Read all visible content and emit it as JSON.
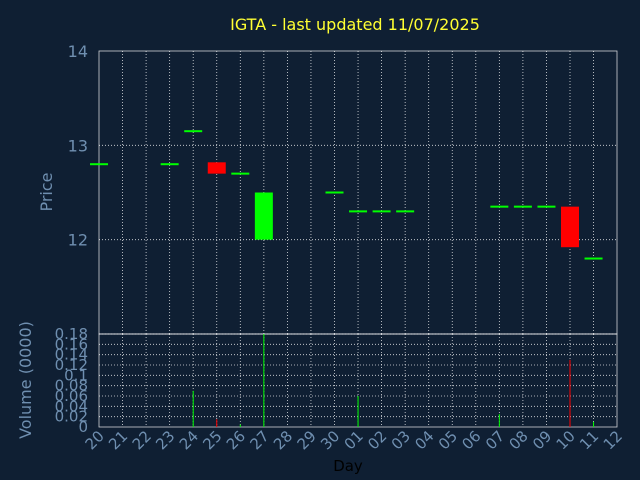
{
  "chart_data": [
    {
      "type": "candlestick",
      "title": "IGTA - last updated 11/07/2025",
      "ylabel": "Price",
      "ylim": [
        11,
        14
      ],
      "yticks": [
        12,
        13,
        14
      ],
      "grid": true,
      "background": "#0f1f33",
      "plot_border_color": "#ffffff",
      "grid_color": "#ffffff",
      "up_color": "#00ff00",
      "down_color": "#ff0000",
      "title_color": "#ffff33",
      "label_color": "#6f8fb0",
      "days": [
        "20",
        "21",
        "22",
        "23",
        "24",
        "25",
        "26",
        "27",
        "28",
        "29",
        "30",
        "01",
        "02",
        "03",
        "04",
        "05",
        "06",
        "07",
        "08",
        "09",
        "10",
        "11",
        "12"
      ],
      "candles": [
        {
          "day": "20",
          "open": 12.8,
          "close": 12.8
        },
        {
          "day": "23",
          "open": 12.8,
          "close": 12.8
        },
        {
          "day": "24",
          "open": 13.15,
          "close": 13.15
        },
        {
          "day": "25",
          "open": 12.82,
          "close": 12.7
        },
        {
          "day": "26",
          "open": 12.7,
          "close": 12.7
        },
        {
          "day": "27",
          "open": 12.0,
          "close": 12.5
        },
        {
          "day": "30",
          "open": 12.5,
          "close": 12.5
        },
        {
          "day": "01",
          "open": 12.3,
          "close": 12.3
        },
        {
          "day": "02",
          "open": 12.3,
          "close": 12.3
        },
        {
          "day": "03",
          "open": 12.3,
          "close": 12.3
        },
        {
          "day": "07",
          "open": 12.35,
          "close": 12.35
        },
        {
          "day": "08",
          "open": 12.35,
          "close": 12.35
        },
        {
          "day": "09",
          "open": 12.35,
          "close": 12.35
        },
        {
          "day": "10",
          "open": 12.35,
          "close": 11.92
        },
        {
          "day": "11",
          "open": 11.8,
          "close": 11.8
        }
      ]
    },
    {
      "type": "bar",
      "ylabel": "Volume (0000)",
      "xlabel": "Day",
      "ylim": [
        0,
        0.18
      ],
      "yticks": [
        "0",
        "0.02",
        "0.04",
        "0.06",
        "0.08",
        "0.1",
        "0.12",
        "0.14",
        "0.16",
        "0.18"
      ],
      "categories": [
        "20",
        "21",
        "22",
        "23",
        "24",
        "25",
        "26",
        "27",
        "28",
        "29",
        "30",
        "01",
        "02",
        "03",
        "04",
        "05",
        "06",
        "07",
        "08",
        "09",
        "10",
        "11",
        "12"
      ],
      "bars": [
        {
          "day": "24",
          "value": 0.07,
          "color": "#00ff00"
        },
        {
          "day": "25",
          "value": 0.015,
          "color": "#ff0000"
        },
        {
          "day": "26",
          "value": 0.005,
          "color": "#00ff00"
        },
        {
          "day": "27",
          "value": 0.18,
          "color": "#00ff00"
        },
        {
          "day": "01",
          "value": 0.06,
          "color": "#00ff00"
        },
        {
          "day": "07",
          "value": 0.025,
          "color": "#00ff00"
        },
        {
          "day": "10",
          "value": 0.13,
          "color": "#ff0000"
        },
        {
          "day": "11",
          "value": 0.01,
          "color": "#00ff00"
        }
      ]
    }
  ]
}
